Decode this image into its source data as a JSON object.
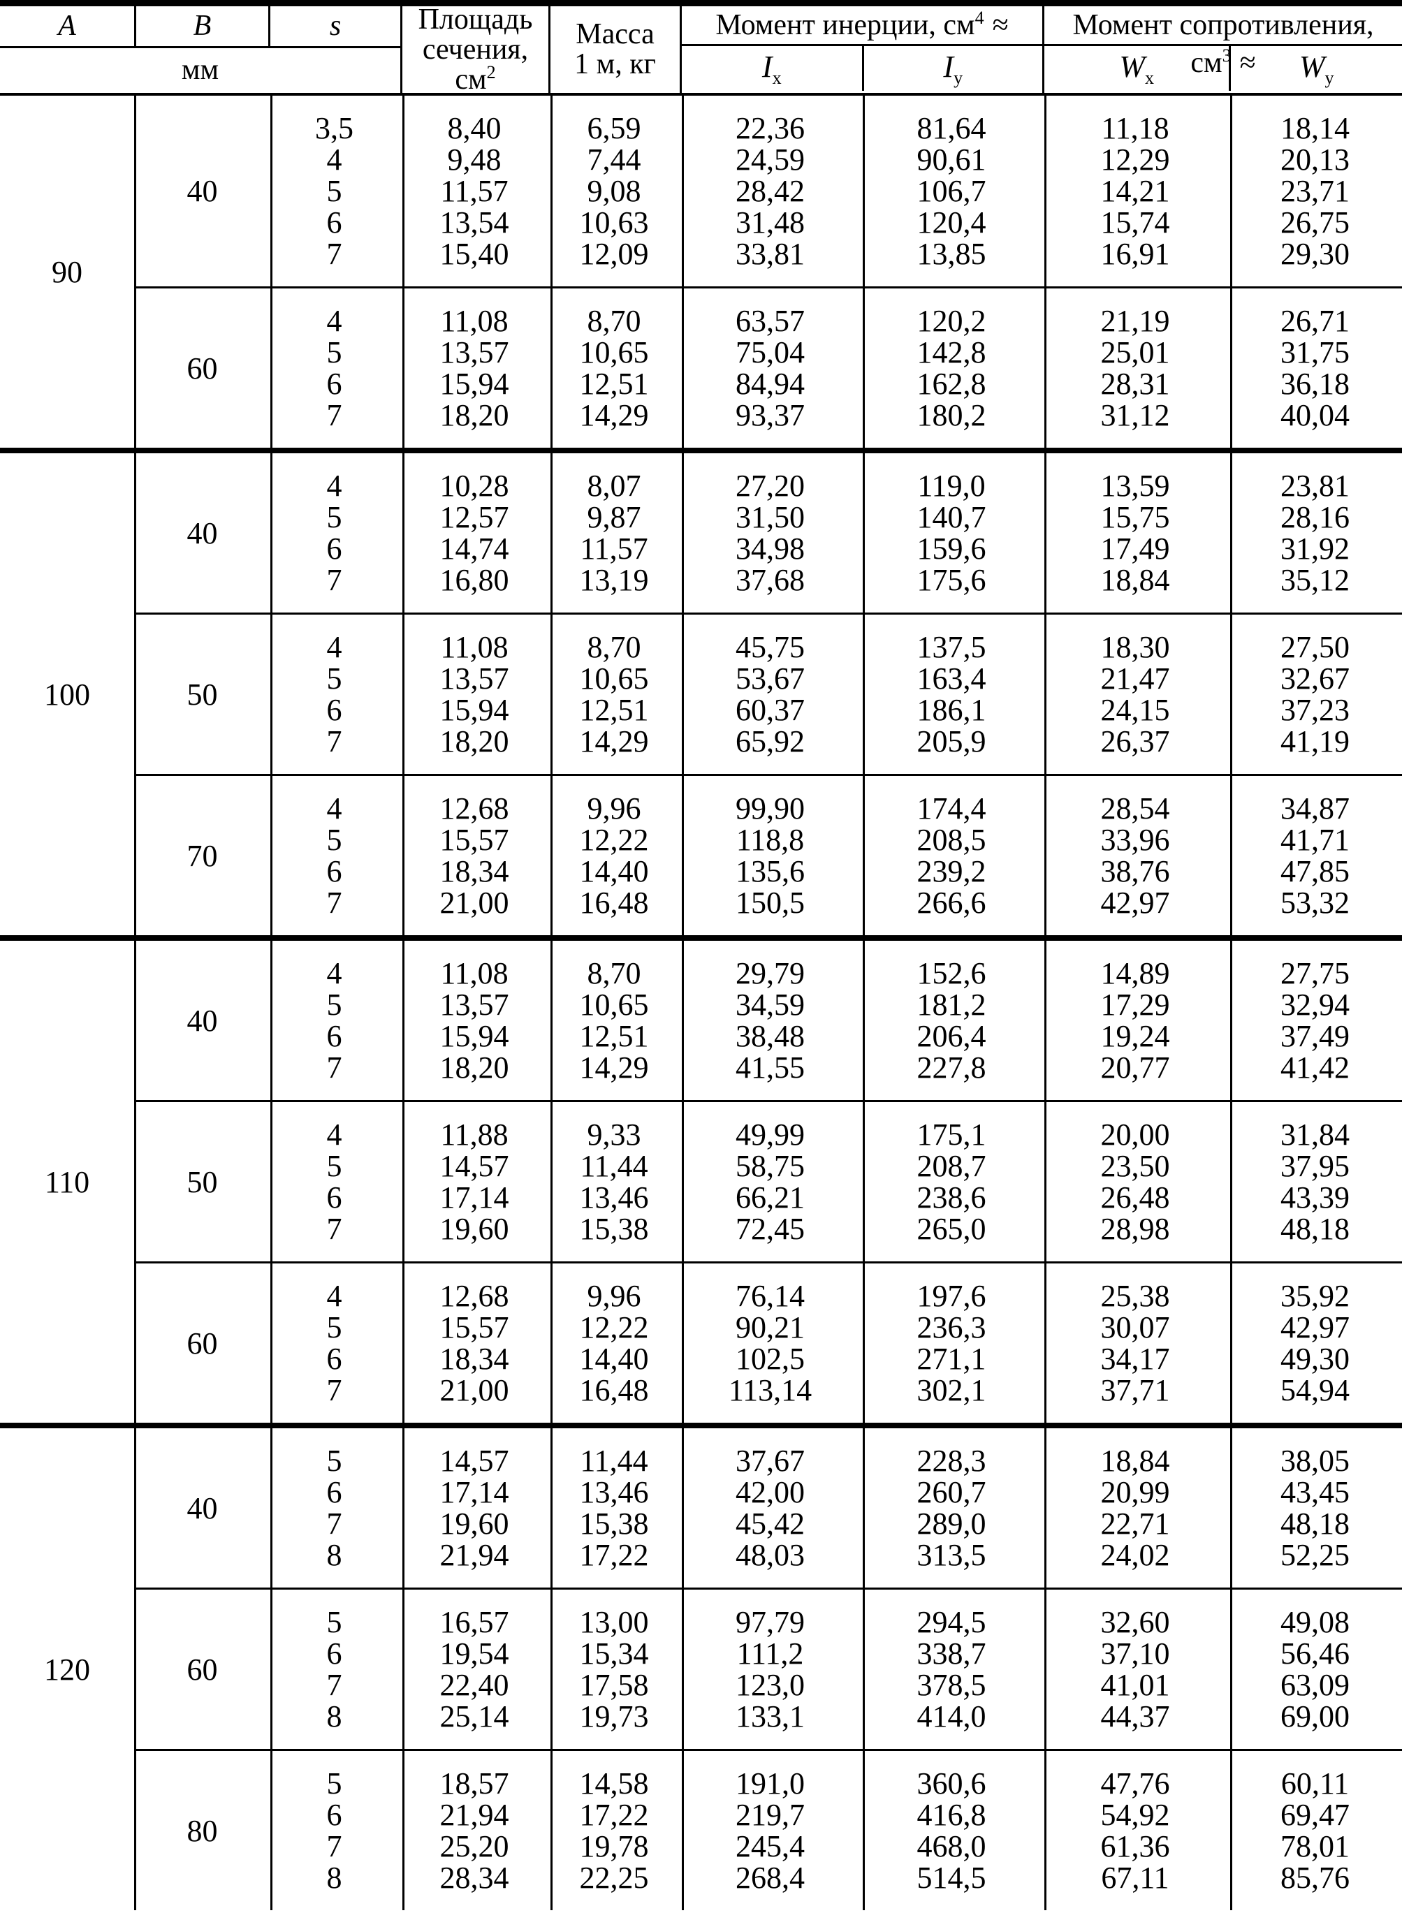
{
  "table": {
    "header": {
      "a": "A",
      "b": "B",
      "s": "s",
      "mm": "мм",
      "area_line1": "Площадь",
      "area_line2": "сечения,",
      "area_unit_base": "см",
      "area_unit_sup": "2",
      "mass_line1": "Масса",
      "mass_line2": "1 м, кг",
      "inertia_base": "Момент инерции, см",
      "inertia_sup": "4",
      "inertia_approx": "≈",
      "resist_base": "Момент сопротивления, см",
      "resist_sup": "3",
      "resist_approx": "≈",
      "ix_base": "I",
      "ix_sub": "x",
      "iy_base": "I",
      "iy_sub": "y",
      "wx_base": "W",
      "wx_sub": "x",
      "wy_base": "W",
      "wy_sub": "y"
    },
    "groups": [
      {
        "a": "90",
        "blocks": [
          {
            "b": "40",
            "rows": [
              [
                "3,5",
                "8,40",
                "6,59",
                "22,36",
                "81,64",
                "11,18",
                "18,14"
              ],
              [
                "4",
                "9,48",
                "7,44",
                "24,59",
                "90,61",
                "12,29",
                "20,13"
              ],
              [
                "5",
                "11,57",
                "9,08",
                "28,42",
                "106,7",
                "14,21",
                "23,71"
              ],
              [
                "6",
                "13,54",
                "10,63",
                "31,48",
                "120,4",
                "15,74",
                "26,75"
              ],
              [
                "7",
                "15,40",
                "12,09",
                "33,81",
                "13,85",
                "16,91",
                "29,30"
              ]
            ]
          },
          {
            "b": "60",
            "rows": [
              [
                "4",
                "11,08",
                "8,70",
                "63,57",
                "120,2",
                "21,19",
                "26,71"
              ],
              [
                "5",
                "13,57",
                "10,65",
                "75,04",
                "142,8",
                "25,01",
                "31,75"
              ],
              [
                "6",
                "15,94",
                "12,51",
                "84,94",
                "162,8",
                "28,31",
                "36,18"
              ],
              [
                "7",
                "18,20",
                "14,29",
                "93,37",
                "180,2",
                "31,12",
                "40,04"
              ]
            ]
          }
        ]
      },
      {
        "a": "100",
        "blocks": [
          {
            "b": "40",
            "rows": [
              [
                "4",
                "10,28",
                "8,07",
                "27,20",
                "119,0",
                "13,59",
                "23,81"
              ],
              [
                "5",
                "12,57",
                "9,87",
                "31,50",
                "140,7",
                "15,75",
                "28,16"
              ],
              [
                "6",
                "14,74",
                "11,57",
                "34,98",
                "159,6",
                "17,49",
                "31,92"
              ],
              [
                "7",
                "16,80",
                "13,19",
                "37,68",
                "175,6",
                "18,84",
                "35,12"
              ]
            ]
          },
          {
            "b": "50",
            "rows": [
              [
                "4",
                "11,08",
                "8,70",
                "45,75",
                "137,5",
                "18,30",
                "27,50"
              ],
              [
                "5",
                "13,57",
                "10,65",
                "53,67",
                "163,4",
                "21,47",
                "32,67"
              ],
              [
                "6",
                "15,94",
                "12,51",
                "60,37",
                "186,1",
                "24,15",
                "37,23"
              ],
              [
                "7",
                "18,20",
                "14,29",
                "65,92",
                "205,9",
                "26,37",
                "41,19"
              ]
            ]
          },
          {
            "b": "70",
            "rows": [
              [
                "4",
                "12,68",
                "9,96",
                "99,90",
                "174,4",
                "28,54",
                "34,87"
              ],
              [
                "5",
                "15,57",
                "12,22",
                "118,8",
                "208,5",
                "33,96",
                "41,71"
              ],
              [
                "6",
                "18,34",
                "14,40",
                "135,6",
                "239,2",
                "38,76",
                "47,85"
              ],
              [
                "7",
                "21,00",
                "16,48",
                "150,5",
                "266,6",
                "42,97",
                "53,32"
              ]
            ]
          }
        ]
      },
      {
        "a": "110",
        "blocks": [
          {
            "b": "40",
            "rows": [
              [
                "4",
                "11,08",
                "8,70",
                "29,79",
                "152,6",
                "14,89",
                "27,75"
              ],
              [
                "5",
                "13,57",
                "10,65",
                "34,59",
                "181,2",
                "17,29",
                "32,94"
              ],
              [
                "6",
                "15,94",
                "12,51",
                "38,48",
                "206,4",
                "19,24",
                "37,49"
              ],
              [
                "7",
                "18,20",
                "14,29",
                "41,55",
                "227,8",
                "20,77",
                "41,42"
              ]
            ]
          },
          {
            "b": "50",
            "rows": [
              [
                "4",
                "11,88",
                "9,33",
                "49,99",
                "175,1",
                "20,00",
                "31,84"
              ],
              [
                "5",
                "14,57",
                "11,44",
                "58,75",
                "208,7",
                "23,50",
                "37,95"
              ],
              [
                "6",
                "17,14",
                "13,46",
                "66,21",
                "238,6",
                "26,48",
                "43,39"
              ],
              [
                "7",
                "19,60",
                "15,38",
                "72,45",
                "265,0",
                "28,98",
                "48,18"
              ]
            ]
          },
          {
            "b": "60",
            "rows": [
              [
                "4",
                "12,68",
                "9,96",
                "76,14",
                "197,6",
                "25,38",
                "35,92"
              ],
              [
                "5",
                "15,57",
                "12,22",
                "90,21",
                "236,3",
                "30,07",
                "42,97"
              ],
              [
                "6",
                "18,34",
                "14,40",
                "102,5",
                "271,1",
                "34,17",
                "49,30"
              ],
              [
                "7",
                "21,00",
                "16,48",
                "113,14",
                "302,1",
                "37,71",
                "54,94"
              ]
            ]
          }
        ]
      },
      {
        "a": "120",
        "blocks": [
          {
            "b": "40",
            "rows": [
              [
                "5",
                "14,57",
                "11,44",
                "37,67",
                "228,3",
                "18,84",
                "38,05"
              ],
              [
                "6",
                "17,14",
                "13,46",
                "42,00",
                "260,7",
                "20,99",
                "43,45"
              ],
              [
                "7",
                "19,60",
                "15,38",
                "45,42",
                "289,0",
                "22,71",
                "48,18"
              ],
              [
                "8",
                "21,94",
                "17,22",
                "48,03",
                "313,5",
                "24,02",
                "52,25"
              ]
            ]
          },
          {
            "b": "60",
            "rows": [
              [
                "5",
                "16,57",
                "13,00",
                "97,79",
                "294,5",
                "32,60",
                "49,08"
              ],
              [
                "6",
                "19,54",
                "15,34",
                "111,2",
                "338,7",
                "37,10",
                "56,46"
              ],
              [
                "7",
                "22,40",
                "17,58",
                "123,0",
                "378,5",
                "41,01",
                "63,09"
              ],
              [
                "8",
                "25,14",
                "19,73",
                "133,1",
                "414,0",
                "44,37",
                "69,00"
              ]
            ]
          },
          {
            "b": "80",
            "rows": [
              [
                "5",
                "18,57",
                "14,58",
                "191,0",
                "360,6",
                "47,76",
                "60,11"
              ],
              [
                "6",
                "21,94",
                "17,22",
                "219,7",
                "416,8",
                "54,92",
                "69,47"
              ],
              [
                "7",
                "25,20",
                "19,78",
                "245,4",
                "468,0",
                "61,36",
                "78,01"
              ],
              [
                "8",
                "28,34",
                "22,25",
                "268,4",
                "514,5",
                "67,11",
                "85,76"
              ]
            ]
          }
        ]
      }
    ]
  }
}
